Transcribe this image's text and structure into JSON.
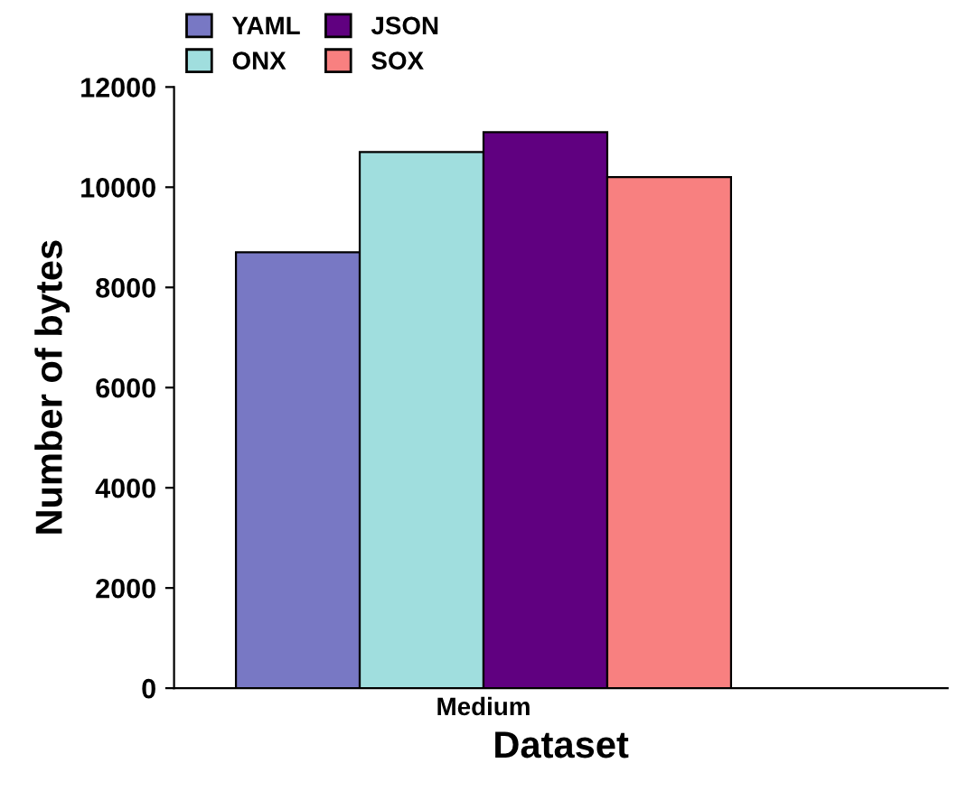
{
  "chart_data": {
    "type": "bar",
    "xlabel": "Dataset",
    "ylabel": "Number of bytes",
    "categories": [
      "Medium"
    ],
    "series": [
      {
        "name": "YAML",
        "color": "#7878c4",
        "values": [
          8700
        ]
      },
      {
        "name": "ONX",
        "color": "#a0dede",
        "values": [
          10700
        ]
      },
      {
        "name": "JSON",
        "color": "#600080",
        "values": [
          11100
        ]
      },
      {
        "name": "SOX",
        "color": "#f88080",
        "values": [
          10200
        ]
      }
    ],
    "ylim": [
      0,
      12000
    ],
    "yticks": [
      0,
      2000,
      4000,
      6000,
      8000,
      10000,
      12000
    ],
    "grid": false,
    "legend": "top left"
  }
}
